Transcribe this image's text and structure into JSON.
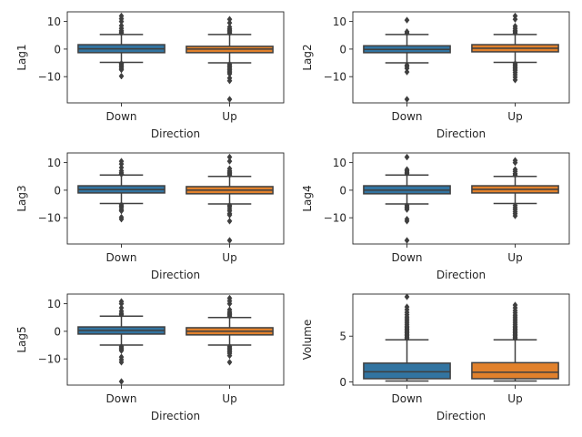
{
  "chart_data": [
    {
      "type": "box",
      "ylabel": "Lag1",
      "xlabel": "Direction",
      "categories": [
        "Down",
        "Up"
      ],
      "ylim": [
        -19.5,
        13.5
      ],
      "yticks": [
        -10,
        0,
        10
      ],
      "ytick_labels": [
        "−10",
        "0",
        "10"
      ],
      "boxes": [
        {
          "category": "Down",
          "whisker_low": -4.8,
          "q1": -1.3,
          "median": 0.1,
          "q3": 1.6,
          "whisker_high": 5.3,
          "outliers": [
            -5.2,
            -5.6,
            -6.0,
            -6.5,
            -7.0,
            -7.5,
            -9.8,
            5.8,
            6.2,
            6.7,
            7.5,
            8.5,
            10.0,
            11.0,
            12.0
          ]
        },
        {
          "category": "Up",
          "whisker_low": -5.0,
          "q1": -1.3,
          "median": 0.0,
          "q3": 1.0,
          "whisker_high": 5.3,
          "outliers": [
            -5.5,
            -6.0,
            -6.5,
            -7.0,
            -7.5,
            -8.0,
            -8.5,
            -9.0,
            -10.5,
            -11.5,
            -18.2,
            5.8,
            6.3,
            6.8,
            7.3,
            8.0,
            9.5,
            10.8
          ]
        }
      ]
    },
    {
      "type": "box",
      "ylabel": "Lag2",
      "xlabel": "Direction",
      "categories": [
        "Down",
        "Up"
      ],
      "ylim": [
        -19.5,
        13.5
      ],
      "yticks": [
        -10,
        0,
        10
      ],
      "ytick_labels": [
        "−10",
        "0",
        "10"
      ],
      "boxes": [
        {
          "category": "Down",
          "whisker_low": -5.0,
          "q1": -1.3,
          "median": -0.1,
          "q3": 1.2,
          "whisker_high": 5.3,
          "outliers": [
            -5.8,
            -6.3,
            -7.0,
            -8.3,
            -18.2,
            5.8,
            6.3,
            10.5
          ]
        },
        {
          "category": "Up",
          "whisker_low": -4.8,
          "q1": -1.0,
          "median": 0.3,
          "q3": 1.6,
          "whisker_high": 5.3,
          "outliers": [
            -5.3,
            -5.8,
            -6.3,
            -6.8,
            -7.3,
            -7.8,
            -8.5,
            -9.3,
            -10.2,
            -11.2,
            5.8,
            6.3,
            6.8,
            7.5,
            8.3,
            10.8,
            12.0
          ]
        }
      ]
    },
    {
      "type": "box",
      "ylabel": "Lag3",
      "xlabel": "Direction",
      "categories": [
        "Down",
        "Up"
      ],
      "ylim": [
        -19.5,
        13.5
      ],
      "yticks": [
        -10,
        0,
        10
      ],
      "ytick_labels": [
        "−10",
        "0",
        "10"
      ],
      "boxes": [
        {
          "category": "Down",
          "whisker_low": -4.8,
          "q1": -1.0,
          "median": 0.2,
          "q3": 1.6,
          "whisker_high": 5.5,
          "outliers": [
            -5.3,
            -5.8,
            -6.3,
            -7.0,
            -7.5,
            -9.8,
            -10.5,
            5.8,
            6.3,
            7.0,
            8.2,
            9.5,
            10.5
          ]
        },
        {
          "category": "Up",
          "whisker_low": -5.0,
          "q1": -1.3,
          "median": 0.0,
          "q3": 1.3,
          "whisker_high": 5.0,
          "outliers": [
            -5.5,
            -6.0,
            -6.8,
            -7.5,
            -8.5,
            -9.0,
            -11.2,
            -18.2,
            5.5,
            6.0,
            6.5,
            7.0,
            7.8,
            10.5,
            12.0
          ]
        }
      ]
    },
    {
      "type": "box",
      "ylabel": "Lag4",
      "xlabel": "Direction",
      "categories": [
        "Down",
        "Up"
      ],
      "ylim": [
        -19.5,
        13.5
      ],
      "yticks": [
        -10,
        0,
        10
      ],
      "ytick_labels": [
        "−10",
        "0",
        "10"
      ],
      "boxes": [
        {
          "category": "Down",
          "whisker_low": -5.0,
          "q1": -1.3,
          "median": 0.0,
          "q3": 1.6,
          "whisker_high": 5.5,
          "outliers": [
            -5.5,
            -6.0,
            -6.5,
            -7.0,
            -10.5,
            -11.2,
            -18.2,
            6.0,
            6.5,
            7.0,
            7.5,
            12.0
          ]
        },
        {
          "category": "Up",
          "whisker_low": -4.8,
          "q1": -1.0,
          "median": 0.3,
          "q3": 1.6,
          "whisker_high": 5.0,
          "outliers": [
            -5.5,
            -6.3,
            -7.0,
            -7.8,
            -8.5,
            -9.3,
            5.5,
            6.0,
            6.8,
            7.5,
            10.0,
            10.8
          ]
        }
      ]
    },
    {
      "type": "box",
      "ylabel": "Lag5",
      "xlabel": "Direction",
      "categories": [
        "Down",
        "Up"
      ],
      "ylim": [
        -19.5,
        13.5
      ],
      "yticks": [
        -10,
        0,
        10
      ],
      "ytick_labels": [
        "−10",
        "0",
        "10"
      ],
      "boxes": [
        {
          "category": "Down",
          "whisker_low": -5.0,
          "q1": -1.0,
          "median": 0.3,
          "q3": 1.6,
          "whisker_high": 5.5,
          "outliers": [
            -5.5,
            -6.0,
            -6.5,
            -7.0,
            -9.3,
            -10.3,
            -11.2,
            -18.2,
            6.0,
            6.5,
            7.3,
            8.5,
            10.0,
            10.8
          ]
        },
        {
          "category": "Up",
          "whisker_low": -5.0,
          "q1": -1.3,
          "median": 0.0,
          "q3": 1.3,
          "whisker_high": 5.0,
          "outliers": [
            -5.5,
            -6.0,
            -6.5,
            -7.0,
            -7.5,
            -8.0,
            -8.8,
            -11.2,
            5.5,
            6.0,
            6.5,
            7.0,
            7.8,
            10.0,
            11.0,
            12.0
          ]
        }
      ]
    },
    {
      "type": "box",
      "ylabel": "Volume",
      "xlabel": "Direction",
      "categories": [
        "Down",
        "Up"
      ],
      "ylim": [
        -0.35,
        9.6
      ],
      "yticks": [
        0,
        5
      ],
      "ytick_labels": [
        "0",
        "5"
      ],
      "boxes": [
        {
          "category": "Down",
          "whisker_low": 0.1,
          "q1": 0.35,
          "median": 1.1,
          "q3": 2.05,
          "whisker_high": 4.6,
          "outliers": [
            4.75,
            4.9,
            5.05,
            5.2,
            5.35,
            5.5,
            5.65,
            5.8,
            5.95,
            6.1,
            6.3,
            6.5,
            6.7,
            6.9,
            7.1,
            7.35,
            7.6,
            7.9,
            8.2,
            9.3
          ]
        },
        {
          "category": "Up",
          "whisker_low": 0.1,
          "q1": 0.35,
          "median": 1.05,
          "q3": 2.1,
          "whisker_high": 4.6,
          "outliers": [
            4.75,
            4.9,
            5.05,
            5.2,
            5.35,
            5.5,
            5.65,
            5.8,
            5.95,
            6.1,
            6.3,
            6.5,
            6.7,
            6.9,
            7.1,
            7.3,
            7.55,
            7.8,
            8.1,
            8.4
          ]
        }
      ]
    }
  ],
  "colors": {
    "Down": "#3274a1",
    "Up": "#e1812c",
    "lines": "#3f3f3f",
    "axes": "#262626"
  }
}
